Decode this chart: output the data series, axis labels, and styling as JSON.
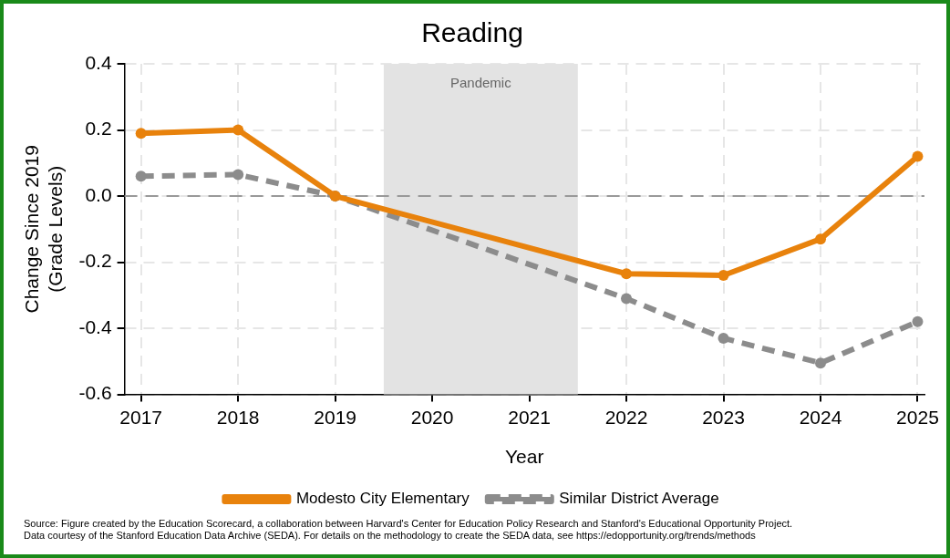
{
  "chart_data": {
    "type": "line",
    "title": "Reading",
    "xlabel": "Year",
    "ylabel": "Change Since 2019\n(Grade Levels)",
    "x": [
      2017,
      2018,
      2019,
      2022,
      2023,
      2024,
      2025
    ],
    "series": [
      {
        "name": "Modesto City Elementary",
        "color": "#e8820c",
        "line_style": "solid",
        "values": [
          0.19,
          0.2,
          0,
          -0.235,
          -0.24,
          -0.13,
          0.12
        ]
      },
      {
        "name": "Similar District Average",
        "color": "#8c8c8c",
        "line_style": "dashed",
        "values": [
          0.06,
          0.065,
          0,
          -0.31,
          -0.43,
          -0.505,
          -0.38
        ]
      }
    ],
    "xlim": [
      2016.83,
      2025.07
    ],
    "xticks": [
      2017,
      2018,
      2019,
      2020,
      2021,
      2022,
      2023,
      2024,
      2025
    ],
    "ylim": [
      -0.6,
      0.4
    ],
    "yticks": [
      {
        "value": -0.6,
        "label": "-0.6"
      },
      {
        "value": -0.4,
        "label": "-0.4"
      },
      {
        "value": -0.2,
        "label": "-0.2"
      },
      {
        "value": 0,
        "label": "0.0"
      },
      {
        "value": 0.2,
        "label": "0.2"
      },
      {
        "value": 0.4,
        "label": "0.4"
      }
    ],
    "grid": true,
    "marker": "circle",
    "legend": "bottom",
    "ref_lines": [
      {
        "axis": "y",
        "value": 0,
        "label": null,
        "color": "#999999",
        "line_style": "dashed"
      }
    ],
    "bands": [
      {
        "axis": "x",
        "from": 2019.5,
        "to": 2021.5,
        "label": "Pandemic",
        "color": "#e3e3e3"
      }
    ],
    "annotations": [
      "Source: Figure created by the Education Scorecard, a collaboration between Harvard's Center for Education Policy Research and Stanford's Educational Opportunity Project.",
      "Data courtesy of the Stanford Education Data Archive (SEDA). For details on the methodology to create the SEDA data, see https://edopportunity.org/trends/methods"
    ]
  }
}
